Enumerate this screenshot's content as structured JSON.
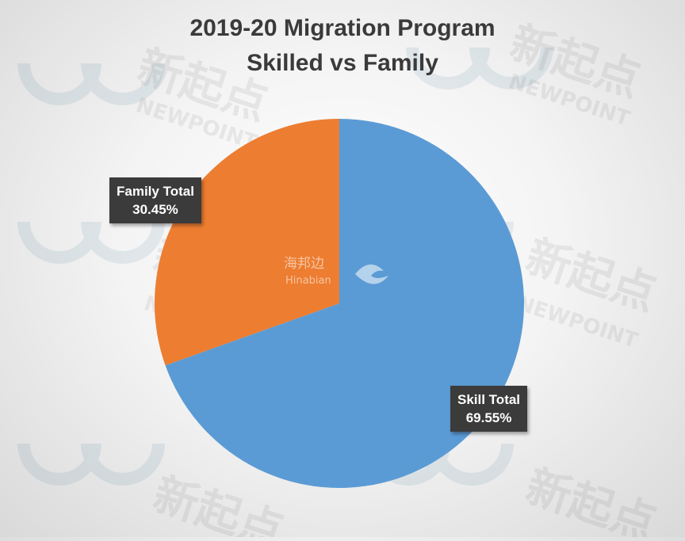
{
  "chart_data": {
    "type": "pie",
    "title": "2019-20 Migration Program",
    "subtitle": "Skilled vs Family",
    "categories": [
      "Skill Total",
      "Family Total"
    ],
    "values": [
      69.55,
      30.45
    ],
    "value_labels": [
      "69.55%",
      "30.45%"
    ],
    "colors": [
      "#5b9bd5",
      "#ed7d31"
    ],
    "start": "12 o'clock, clockwise",
    "legend": "none (data callouts)"
  },
  "watermarks": {
    "center_cn": "海邦边",
    "center_en": "Hinabian",
    "repeat_cn": "新起点",
    "repeat_en": "NEWPOINT",
    "icon": "newpoint-logo-icon"
  }
}
